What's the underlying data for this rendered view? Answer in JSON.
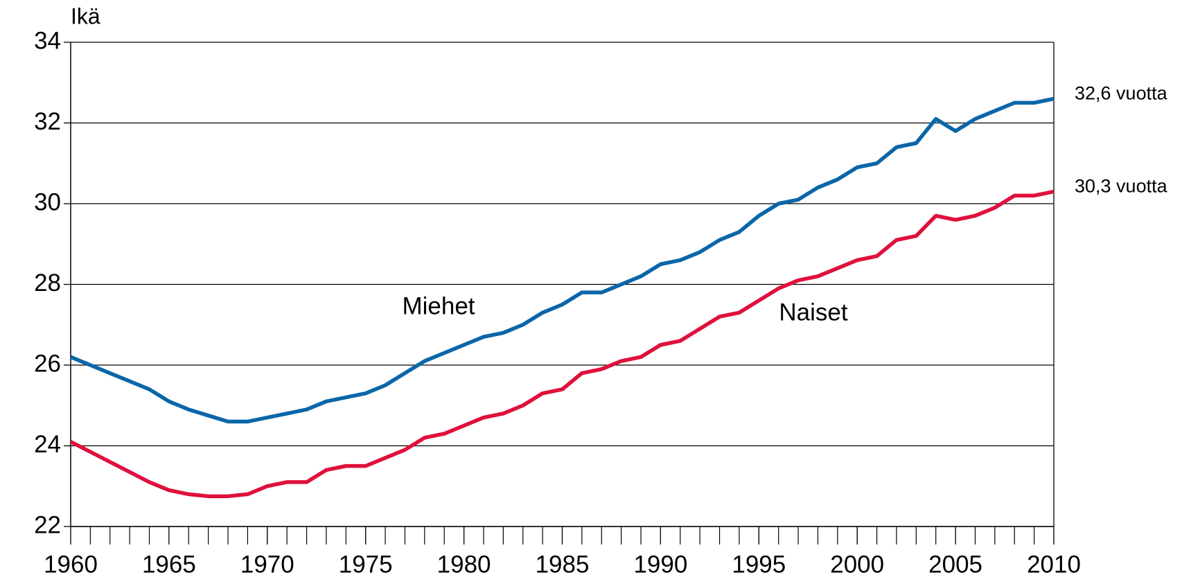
{
  "chart_data": {
    "type": "line",
    "y_label": "Ikä",
    "x": [
      1960,
      1961,
      1962,
      1963,
      1964,
      1965,
      1966,
      1967,
      1968,
      1969,
      1970,
      1971,
      1972,
      1973,
      1974,
      1975,
      1976,
      1977,
      1978,
      1979,
      1980,
      1981,
      1982,
      1983,
      1984,
      1985,
      1986,
      1987,
      1988,
      1989,
      1990,
      1991,
      1992,
      1993,
      1994,
      1995,
      1996,
      1997,
      1998,
      1999,
      2000,
      2001,
      2002,
      2003,
      2004,
      2005,
      2006,
      2007,
      2008,
      2009,
      2010
    ],
    "series": [
      {
        "name": "Miehet",
        "color": "#0a66a8",
        "end_label": "32,6 vuotta",
        "values": [
          26.2,
          26.0,
          25.8,
          25.6,
          25.4,
          25.1,
          24.9,
          24.75,
          24.6,
          24.6,
          24.7,
          24.8,
          24.9,
          25.1,
          25.2,
          25.3,
          25.5,
          25.8,
          26.1,
          26.3,
          26.5,
          26.7,
          26.8,
          27.0,
          27.3,
          27.5,
          27.8,
          27.8,
          28.0,
          28.2,
          28.5,
          28.6,
          28.8,
          29.1,
          29.3,
          29.7,
          30.0,
          30.1,
          30.4,
          30.6,
          30.9,
          31.0,
          31.4,
          31.5,
          32.1,
          31.8,
          32.1,
          32.3,
          32.5,
          32.5,
          32.6
        ]
      },
      {
        "name": "Naiset",
        "color": "#e0103c",
        "end_label": "30,3 vuotta",
        "values": [
          24.1,
          23.85,
          23.6,
          23.35,
          23.1,
          22.9,
          22.8,
          22.75,
          22.75,
          22.8,
          23.0,
          23.1,
          23.1,
          23.4,
          23.5,
          23.5,
          23.7,
          23.9,
          24.2,
          24.3,
          24.5,
          24.7,
          24.8,
          25.0,
          25.3,
          25.4,
          25.8,
          25.9,
          26.1,
          26.2,
          26.5,
          26.6,
          26.9,
          27.2,
          27.3,
          27.6,
          27.9,
          28.1,
          28.2,
          28.4,
          28.6,
          28.7,
          29.1,
          29.2,
          29.7,
          29.6,
          29.7,
          29.9,
          30.2,
          30.2,
          30.3
        ]
      }
    ],
    "xlim": [
      1960,
      2010
    ],
    "xticks": [
      1960,
      1965,
      1970,
      1975,
      1980,
      1985,
      1990,
      1995,
      2000,
      2005,
      2010
    ],
    "ylim": [
      22,
      34
    ],
    "yticks": [
      22,
      24,
      26,
      28,
      30,
      32,
      34
    ],
    "grid": true
  }
}
